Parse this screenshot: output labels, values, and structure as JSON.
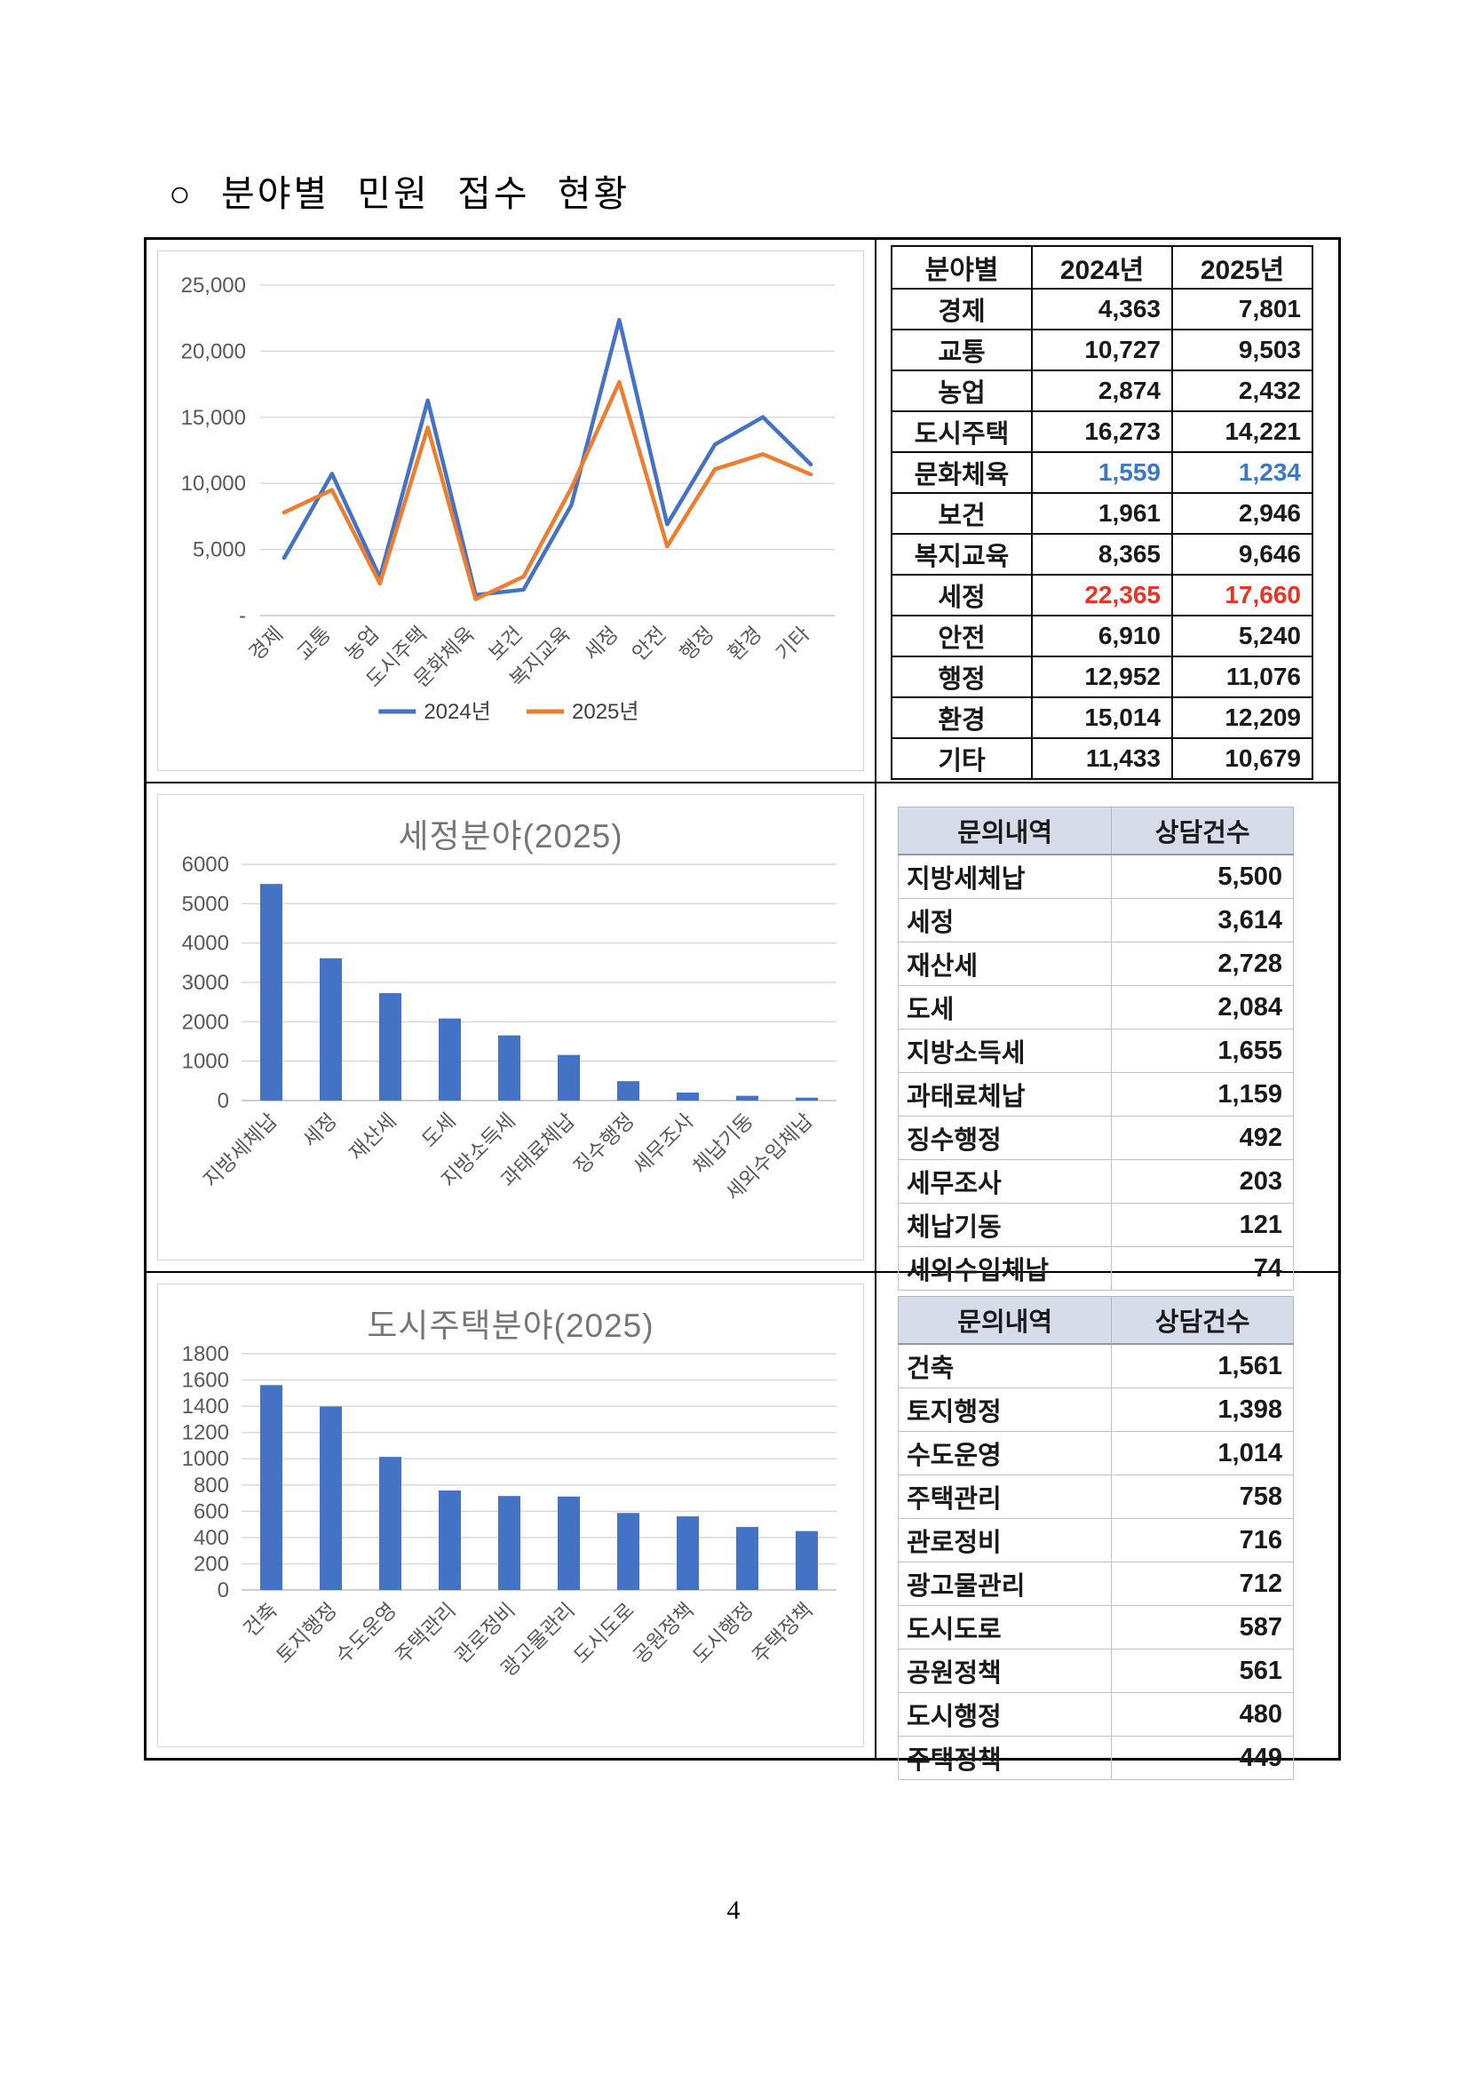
{
  "page": {
    "title": "○ 분야별 민원 접수 현황",
    "page_number": "4"
  },
  "colors": {
    "series_2024": "#4472C4",
    "series_2025": "#ED7D31",
    "bar": "#4472C4",
    "red_text": "#e93323",
    "blue_text": "#3a78c3",
    "kv_header_bg": "#d6dce9",
    "gridline": "#d9d9d9"
  },
  "chart_data": [
    {
      "type": "line",
      "title": "",
      "categories": [
        "경제",
        "교통",
        "농업",
        "도시주택",
        "문화체육",
        "보건",
        "복지교육",
        "세정",
        "안전",
        "행정",
        "환경",
        "기타"
      ],
      "series": [
        {
          "name": "2024년",
          "color": "#4472C4",
          "values": [
            4363,
            10727,
            2874,
            16273,
            1559,
            1961,
            8365,
            22365,
            6910,
            12952,
            15014,
            11433
          ]
        },
        {
          "name": "2025년",
          "color": "#ED7D31",
          "values": [
            7801,
            9503,
            2432,
            14221,
            1234,
            2946,
            9646,
            17660,
            5240,
            11076,
            12209,
            10679
          ]
        }
      ],
      "xlabel": "",
      "ylabel": "",
      "ylim": [
        0,
        25000
      ],
      "ytick_step": 5000,
      "ytick_labels": [
        "-",
        "5,000",
        "10,000",
        "15,000",
        "20,000",
        "25,000"
      ],
      "grid": true,
      "legend_position": "bottom"
    },
    {
      "type": "bar",
      "title": "세정분야(2025)",
      "categories": [
        "지방세체납",
        "세정",
        "재산세",
        "도세",
        "지방소득세",
        "과태료체납",
        "징수행정",
        "세무조사",
        "체납기동",
        "세외수입체납"
      ],
      "values": [
        5500,
        3614,
        2728,
        2084,
        1655,
        1159,
        492,
        203,
        121,
        74
      ],
      "bar_color": "#4472C4",
      "xlabel": "",
      "ylabel": "",
      "ylim": [
        0,
        6000
      ],
      "ytick_step": 1000,
      "ytick_labels": [
        "0",
        "1000",
        "2000",
        "3000",
        "4000",
        "5000",
        "6000"
      ],
      "grid": true,
      "legend_position": "none"
    },
    {
      "type": "bar",
      "title": "도시주택분야(2025)",
      "categories": [
        "건축",
        "토지행정",
        "수도운영",
        "주택관리",
        "관로정비",
        "광고물관리",
        "도시도로",
        "공원정책",
        "도시행정",
        "주택정책"
      ],
      "values": [
        1561,
        1398,
        1014,
        758,
        716,
        712,
        587,
        561,
        480,
        449
      ],
      "bar_color": "#4472C4",
      "xlabel": "",
      "ylabel": "",
      "ylim": [
        0,
        1800
      ],
      "ytick_step": 200,
      "ytick_labels": [
        "0",
        "200",
        "400",
        "600",
        "800",
        "1000",
        "1200",
        "1400",
        "1600",
        "1800"
      ],
      "grid": true,
      "legend_position": "none"
    }
  ],
  "summary_table": {
    "headers": [
      "분야별",
      "2024년",
      "2025년"
    ],
    "rows": [
      {
        "label": "경제",
        "y2024": "4,363",
        "y2025": "7,801",
        "color": "default"
      },
      {
        "label": "교통",
        "y2024": "10,727",
        "y2025": "9,503",
        "color": "default"
      },
      {
        "label": "농업",
        "y2024": "2,874",
        "y2025": "2,432",
        "color": "default"
      },
      {
        "label": "도시주택",
        "y2024": "16,273",
        "y2025": "14,221",
        "color": "default"
      },
      {
        "label": "문화체육",
        "y2024": "1,559",
        "y2025": "1,234",
        "color": "blue"
      },
      {
        "label": "보건",
        "y2024": "1,961",
        "y2025": "2,946",
        "color": "default"
      },
      {
        "label": "복지교육",
        "y2024": "8,365",
        "y2025": "9,646",
        "color": "default"
      },
      {
        "label": "세정",
        "y2024": "22,365",
        "y2025": "17,660",
        "color": "red"
      },
      {
        "label": "안전",
        "y2024": "6,910",
        "y2025": "5,240",
        "color": "default"
      },
      {
        "label": "행정",
        "y2024": "12,952",
        "y2025": "11,076",
        "color": "default"
      },
      {
        "label": "환경",
        "y2024": "15,014",
        "y2025": "12,209",
        "color": "default"
      },
      {
        "label": "기타",
        "y2024": "11,433",
        "y2025": "10,679",
        "color": "default"
      }
    ]
  },
  "tax_table": {
    "headers": [
      "문의내역",
      "상담건수"
    ],
    "rows": [
      {
        "label": "지방세체납",
        "value": "5,500"
      },
      {
        "label": "세정",
        "value": "3,614"
      },
      {
        "label": "재산세",
        "value": "2,728"
      },
      {
        "label": "도세",
        "value": "2,084"
      },
      {
        "label": "지방소득세",
        "value": "1,655"
      },
      {
        "label": "과태료체납",
        "value": "1,159"
      },
      {
        "label": "징수행정",
        "value": "492"
      },
      {
        "label": "세무조사",
        "value": "203"
      },
      {
        "label": "체납기동",
        "value": "121"
      },
      {
        "label": "세외수입체납",
        "value": "74"
      }
    ]
  },
  "housing_table": {
    "headers": [
      "문의내역",
      "상담건수"
    ],
    "rows": [
      {
        "label": "건축",
        "value": "1,561"
      },
      {
        "label": "토지행정",
        "value": "1,398"
      },
      {
        "label": "수도운영",
        "value": "1,014"
      },
      {
        "label": "주택관리",
        "value": "758"
      },
      {
        "label": "관로정비",
        "value": "716"
      },
      {
        "label": "광고물관리",
        "value": "712"
      },
      {
        "label": "도시도로",
        "value": "587"
      },
      {
        "label": "공원정책",
        "value": "561"
      },
      {
        "label": "도시행정",
        "value": "480"
      },
      {
        "label": "주택정책",
        "value": "449"
      }
    ]
  }
}
